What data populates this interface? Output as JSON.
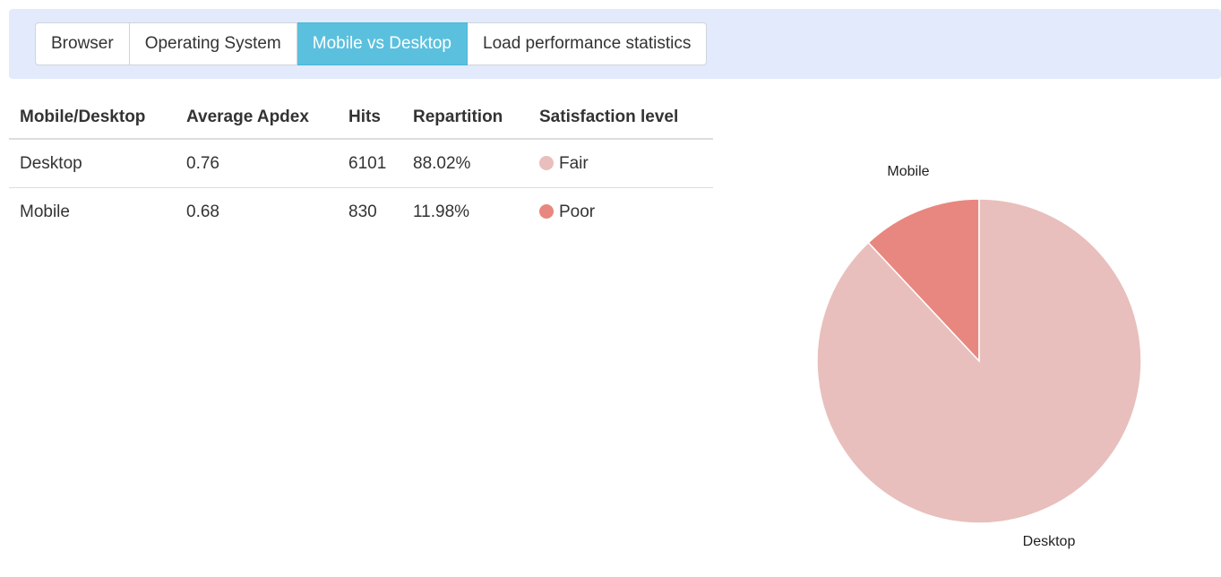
{
  "tabs": [
    {
      "label": "Browser",
      "active": false
    },
    {
      "label": "Operating System",
      "active": false
    },
    {
      "label": "Mobile vs Desktop",
      "active": true
    },
    {
      "label": "Load performance statistics",
      "active": false
    }
  ],
  "table": {
    "headers": [
      "Mobile/Desktop",
      "Average Apdex",
      "Hits",
      "Repartition",
      "Satisfaction level"
    ],
    "rows": [
      {
        "device": "Desktop",
        "apdex": "0.76",
        "hits": "6101",
        "repartition": "88.02%",
        "satisfaction": "Fair",
        "color": "#e8bfbc"
      },
      {
        "device": "Mobile",
        "apdex": "0.68",
        "hits": "830",
        "repartition": "11.98%",
        "satisfaction": "Poor",
        "color": "#e8877f"
      }
    ]
  },
  "chart_data": {
    "type": "pie",
    "categories": [
      "Mobile",
      "Desktop"
    ],
    "values": [
      830,
      6101
    ],
    "percentages": [
      11.98,
      88.02
    ],
    "colors": [
      "#e8877f",
      "#e8bfbc"
    ],
    "start": "12 o'clock, counter-clockwise for Mobile"
  },
  "colors": {
    "tab_bar_bg": "#e2eafb",
    "active_tab": "#5bc0de",
    "fair": "#e8bfbc",
    "poor": "#e8877f"
  }
}
